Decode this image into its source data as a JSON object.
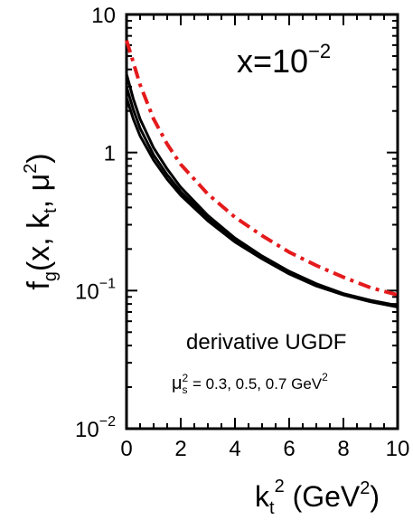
{
  "chart_data": {
    "type": "line",
    "y_scale": "log",
    "xlim": [
      0,
      10
    ],
    "ylim": [
      0.01,
      10
    ],
    "x_ticks": [
      "0",
      "2",
      "4",
      "6",
      "8",
      "10"
    ],
    "y_ticks": [
      {
        "value": 10,
        "base": "10",
        "exp": ""
      },
      {
        "value": 1,
        "base": "1",
        "exp": ""
      },
      {
        "value": 0.1,
        "base": "10",
        "exp": "−1"
      },
      {
        "value": 0.01,
        "base": "10",
        "exp": "−2"
      }
    ],
    "ylabel": {
      "f": "f",
      "g": "g",
      "args_open": "(x, k",
      "t": "t",
      "sep": ", μ",
      "sq": "2",
      "close": ")"
    },
    "xlabel": {
      "k": "k",
      "t": "t",
      "sq": "2",
      "unit_open": " (GeV",
      "unit_sq": "2",
      "unit_close": ")"
    },
    "annotations": {
      "xval": {
        "prefix": "x=10",
        "exp": "−2"
      },
      "ugdf": "derivative UGDF",
      "mu": {
        "mu": "μ",
        "sub": "s",
        "sq": "2",
        "values": " = 0.3, 0.5, 0.7 GeV",
        "unit_sq": "2"
      }
    },
    "colors": {
      "solid": "#000000",
      "dashdot": "#e41a1c"
    },
    "grid": false,
    "series": [
      {
        "style": "solid",
        "x": [
          0,
          0.25,
          0.5,
          1,
          1.5,
          2,
          3,
          4,
          5,
          6,
          7,
          8,
          9,
          10
        ],
        "y": [
          2.5,
          1.75,
          1.32,
          0.88,
          0.64,
          0.49,
          0.32,
          0.225,
          0.17,
          0.132,
          0.108,
          0.093,
          0.083,
          0.076
        ]
      },
      {
        "style": "solid",
        "x": [
          0,
          0.25,
          0.5,
          1,
          1.5,
          2,
          3,
          4,
          5,
          6,
          7,
          8,
          9,
          10
        ],
        "y": [
          3.0,
          2.05,
          1.5,
          0.96,
          0.69,
          0.52,
          0.335,
          0.233,
          0.174,
          0.135,
          0.11,
          0.094,
          0.084,
          0.077
        ]
      },
      {
        "style": "solid",
        "x": [
          0,
          0.25,
          0.5,
          1,
          1.5,
          2,
          3,
          4,
          5,
          6,
          7,
          8,
          9,
          10
        ],
        "y": [
          3.7,
          2.45,
          1.75,
          1.08,
          0.76,
          0.56,
          0.35,
          0.24,
          0.178,
          0.138,
          0.112,
          0.095,
          0.085,
          0.078
        ]
      },
      {
        "style": "dashdot",
        "x": [
          0,
          0.25,
          0.5,
          1,
          1.5,
          2,
          3,
          4,
          5,
          6,
          7,
          8,
          9,
          10
        ],
        "y": [
          6.5,
          4.5,
          3.1,
          1.75,
          1.15,
          0.82,
          0.5,
          0.34,
          0.25,
          0.19,
          0.152,
          0.125,
          0.105,
          0.093
        ]
      }
    ]
  }
}
